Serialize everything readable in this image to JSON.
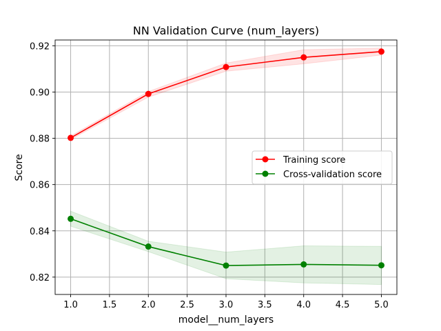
{
  "chart_data": {
    "type": "line",
    "title": "NN Validation Curve (num_layers)",
    "xlabel": "model__num_layers",
    "ylabel": "Score",
    "x": [
      1,
      2,
      3,
      4,
      5
    ],
    "xlim": [
      0.8,
      5.2
    ],
    "ylim": [
      0.8125,
      0.9225
    ],
    "xticks": [
      1.0,
      1.5,
      2.0,
      2.5,
      3.0,
      3.5,
      4.0,
      4.5,
      5.0
    ],
    "xtick_labels": [
      "1.0",
      "1.5",
      "2.0",
      "2.5",
      "3.0",
      "3.5",
      "4.0",
      "4.5",
      "5.0"
    ],
    "yticks": [
      0.82,
      0.84,
      0.86,
      0.88,
      0.9,
      0.92
    ],
    "ytick_labels": [
      "0.82",
      "0.84",
      "0.86",
      "0.88",
      "0.90",
      "0.92"
    ],
    "grid": true,
    "legend_position": "center-right",
    "series": [
      {
        "name": "Training score",
        "color": "#ff0000",
        "values": [
          0.8802,
          0.8992,
          0.9108,
          0.915,
          0.9175
        ],
        "band_upper": [
          0.881,
          0.9002,
          0.9125,
          0.9183,
          0.919
        ],
        "band_lower": [
          0.8795,
          0.8978,
          0.909,
          0.9122,
          0.916
        ]
      },
      {
        "name": "Cross-validation score",
        "color": "#008000",
        "values": [
          0.8452,
          0.8332,
          0.825,
          0.8255,
          0.8251
        ],
        "band_upper": [
          0.8485,
          0.8355,
          0.8308,
          0.8335,
          0.8333
        ],
        "band_lower": [
          0.842,
          0.831,
          0.8193,
          0.8175,
          0.8168
        ]
      }
    ]
  }
}
